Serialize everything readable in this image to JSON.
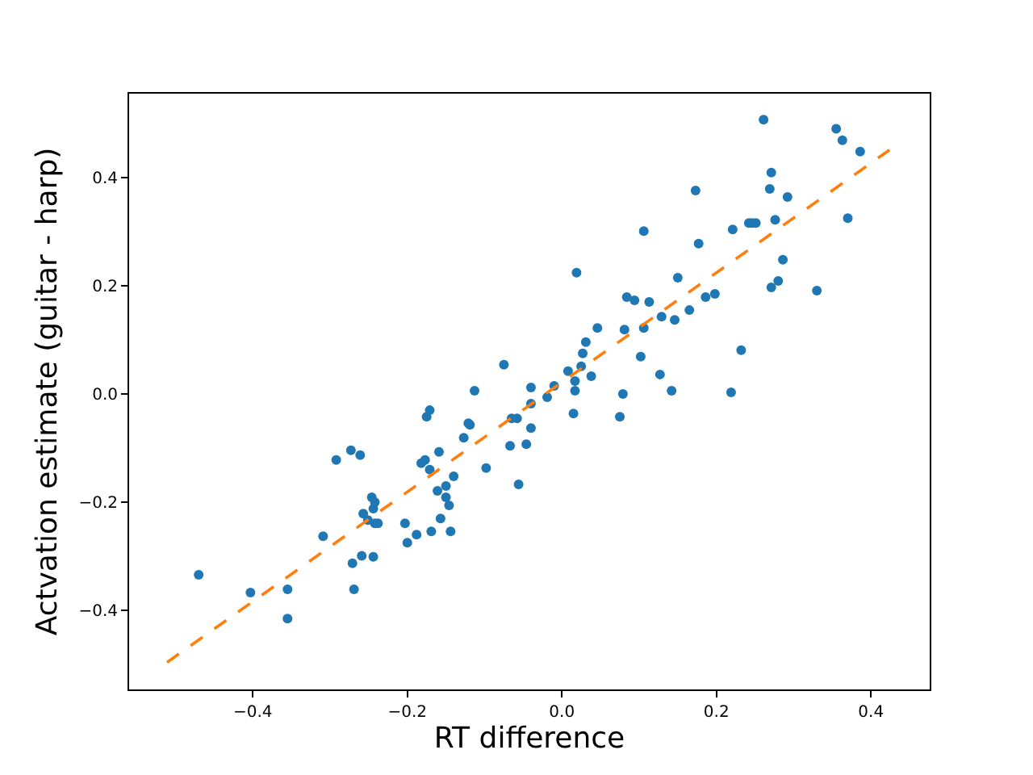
{
  "chart_data": {
    "type": "scatter",
    "xlabel": "RT difference",
    "ylabel": "Actvation estimate (guitar - harp)",
    "xlim": [
      -0.56,
      0.476
    ],
    "ylim": [
      -0.546,
      0.555
    ],
    "xticks": [
      {
        "value": -0.4,
        "label": "−0.4"
      },
      {
        "value": -0.2,
        "label": "−0.2"
      },
      {
        "value": 0,
        "label": "0.0"
      },
      {
        "value": 0.2,
        "label": "0.2"
      },
      {
        "value": 0.4,
        "label": "0.4"
      }
    ],
    "yticks": [
      {
        "value": -0.4,
        "label": "−0.4"
      },
      {
        "value": -0.2,
        "label": "−0.2"
      },
      {
        "value": 0,
        "label": "0.0"
      },
      {
        "value": 0.2,
        "label": "0.2"
      },
      {
        "value": 0.4,
        "label": "0.4"
      }
    ],
    "grid": false,
    "marker": "circle",
    "series": [
      {
        "color": "#1f77b4",
        "x": [
          -0.47,
          -0.403,
          -0.355,
          -0.355,
          -0.309,
          -0.292,
          -0.273,
          -0.261,
          -0.271,
          -0.269,
          -0.259,
          -0.244,
          -0.257,
          -0.251,
          -0.246,
          -0.242,
          -0.244,
          -0.242,
          -0.238,
          -0.203,
          -0.2,
          -0.188,
          -0.169,
          -0.157,
          -0.161,
          -0.15,
          -0.15,
          -0.146,
          -0.144,
          -0.14,
          -0.182,
          -0.177,
          -0.171,
          -0.159,
          -0.175,
          -0.171,
          -0.127,
          -0.121,
          -0.119,
          -0.113,
          -0.098,
          -0.075,
          -0.067,
          -0.065,
          -0.058,
          -0.056,
          -0.046,
          -0.04,
          -0.04,
          -0.04,
          -0.019,
          -0.01,
          0.008,
          0.017,
          0.017,
          0.015,
          0.019,
          0.025,
          0.027,
          0.031,
          0.038,
          0.046,
          0.075,
          0.079,
          0.081,
          0.084,
          0.094,
          0.102,
          0.106,
          0.106,
          0.113,
          0.127,
          0.129,
          0.142,
          0.146,
          0.15,
          0.165,
          0.173,
          0.177,
          0.186,
          0.198,
          0.219,
          0.221,
          0.232,
          0.242,
          0.246,
          0.251,
          0.261,
          0.269,
          0.271,
          0.276,
          0.271,
          0.28,
          0.286,
          0.292,
          0.33,
          0.355,
          0.363,
          0.37,
          0.386
        ],
        "values": [
          -0.334,
          -0.367,
          -0.361,
          -0.415,
          -0.263,
          -0.122,
          -0.104,
          -0.113,
          -0.313,
          -0.361,
          -0.299,
          -0.301,
          -0.221,
          -0.233,
          -0.191,
          -0.2,
          -0.212,
          -0.239,
          -0.239,
          -0.239,
          -0.275,
          -0.26,
          -0.254,
          -0.23,
          -0.179,
          -0.17,
          -0.191,
          -0.206,
          -0.254,
          -0.152,
          -0.128,
          -0.122,
          -0.14,
          -0.107,
          -0.042,
          -0.03,
          -0.081,
          -0.054,
          -0.057,
          0.006,
          -0.137,
          0.054,
          -0.096,
          -0.045,
          -0.045,
          -0.167,
          -0.093,
          -0.063,
          -0.018,
          0.012,
          -0.006,
          0.015,
          0.042,
          0.024,
          0.006,
          -0.036,
          0.224,
          0.051,
          0.075,
          0.096,
          0.033,
          0.122,
          -0.042,
          0,
          0.119,
          0.179,
          0.173,
          0.069,
          0.122,
          0.301,
          0.17,
          0.036,
          0.143,
          0.006,
          0.137,
          0.215,
          0.155,
          0.376,
          0.278,
          0.179,
          0.185,
          0.003,
          0.304,
          0.081,
          0.316,
          0.316,
          0.316,
          0.507,
          0.379,
          0.409,
          0.322,
          0.197,
          0.209,
          0.248,
          0.364,
          0.191,
          0.49,
          0.469,
          0.325,
          0.448
        ]
      },
      {
        "type": "line",
        "color": "#ff7f0e",
        "line_style": "dashed",
        "marker": "none",
        "x": [
          -0.511,
          0.424
        ],
        "values": [
          -0.496,
          0.451
        ]
      }
    ]
  }
}
